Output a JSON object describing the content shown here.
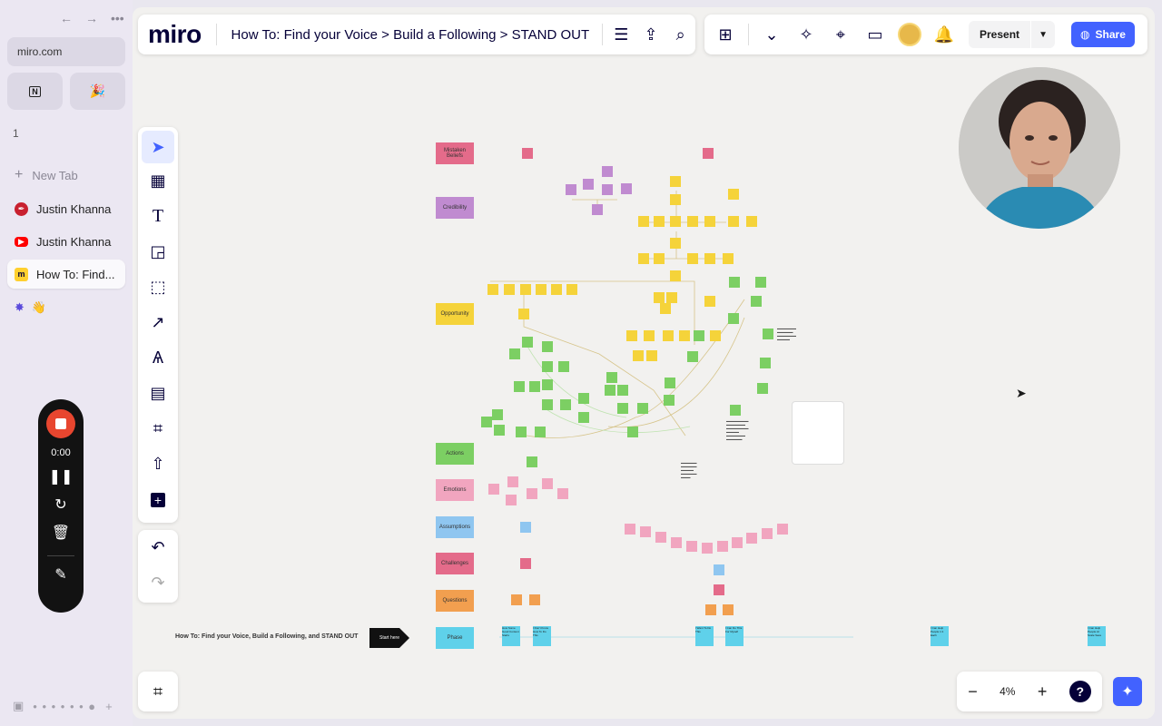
{
  "browser": {
    "url": "miro.com",
    "space_number": "1",
    "new_tab_label": "New Tab",
    "tabs": [
      {
        "label": "Justin Khanna",
        "icon": "quill-icon",
        "color": "#c8202f"
      },
      {
        "label": "Justin Khanna",
        "icon": "youtube-icon",
        "color": "#ff0000"
      },
      {
        "label": "How To: Find...",
        "icon": "miro-icon",
        "color": "#ffd02f",
        "active": true
      }
    ],
    "extra_emoji": "👋"
  },
  "recorder": {
    "time": "0:00"
  },
  "miro": {
    "logo": "miro",
    "breadcrumb": "How To: Find your Voice > Build a Following > STAND OUT",
    "present_label": "Present",
    "share_label": "Share",
    "zoom_level": "4%",
    "accent": "#4262ff"
  },
  "board": {
    "title": "How To: Find your Voice, Build a Following, and STAND OUT",
    "start_label": "Start here",
    "row_labels": [
      {
        "label": "Mistaken Beliefs",
        "color": "#e46b8a"
      },
      {
        "label": "Credibility",
        "color": "#c08bd0"
      },
      {
        "label": "Opportunity",
        "color": "#f5d33a"
      },
      {
        "label": "Actions",
        "color": "#7ccf63"
      },
      {
        "label": "Emotions",
        "color": "#f1a5bf"
      },
      {
        "label": "Assumptions",
        "color": "#8fc6f0"
      },
      {
        "label": "Challenges",
        "color": "#e46b8a"
      },
      {
        "label": "Questions",
        "color": "#f29f4f"
      },
      {
        "label": "Phase",
        "color": "#5fd1ea"
      }
    ],
    "phase_notes": [
      "How Some Good Content Starts",
      "I Don't Know How To Do This",
      "I Want To Do This",
      "I Can Do This For Myself",
      "I Can Help People 1:1 Each",
      "I Can Help People At Scale Save"
    ]
  }
}
